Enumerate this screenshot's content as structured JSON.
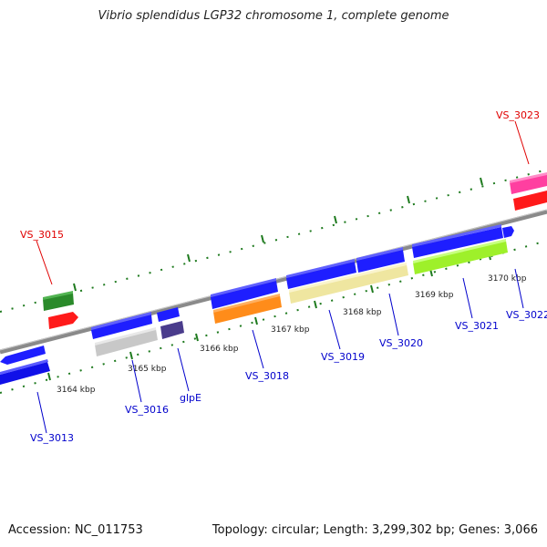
{
  "title": "Vibrio splendidus LGP32 chromosome 1, complete genome",
  "footer": {
    "accession": "Accession: NC_011753",
    "topology": "Topology: circular; Length: 3,299,302 bp; Genes: 3,066"
  },
  "colors": {
    "backbone": "#8a8a8a",
    "dots": "#1e7a1e",
    "label_forward": "#0000cc",
    "label_reverse": "#e00000"
  },
  "ticks": [
    {
      "label": "3164 kbp"
    },
    {
      "label": "3165 kbp"
    },
    {
      "label": "3166 kbp"
    },
    {
      "label": "3167 kbp"
    },
    {
      "label": "3168 kbp"
    },
    {
      "label": "3169 kbp"
    },
    {
      "label": "3170 kbp"
    }
  ],
  "genes": [
    {
      "name": "VS_3013",
      "color": "#0000cc"
    },
    {
      "name": "VS_3015",
      "color": "#e00000"
    },
    {
      "name": "VS_3016",
      "color": "#0000cc"
    },
    {
      "name": "glpE",
      "color": "#0000cc"
    },
    {
      "name": "VS_3018",
      "color": "#0000cc"
    },
    {
      "name": "VS_3019",
      "color": "#0000cc"
    },
    {
      "name": "VS_3020",
      "color": "#0000cc"
    },
    {
      "name": "VS_3021",
      "color": "#0000cc"
    },
    {
      "name": "VS_3022",
      "color": "#0000cc"
    },
    {
      "name": "VS_3023",
      "color": "#e00000"
    }
  ]
}
